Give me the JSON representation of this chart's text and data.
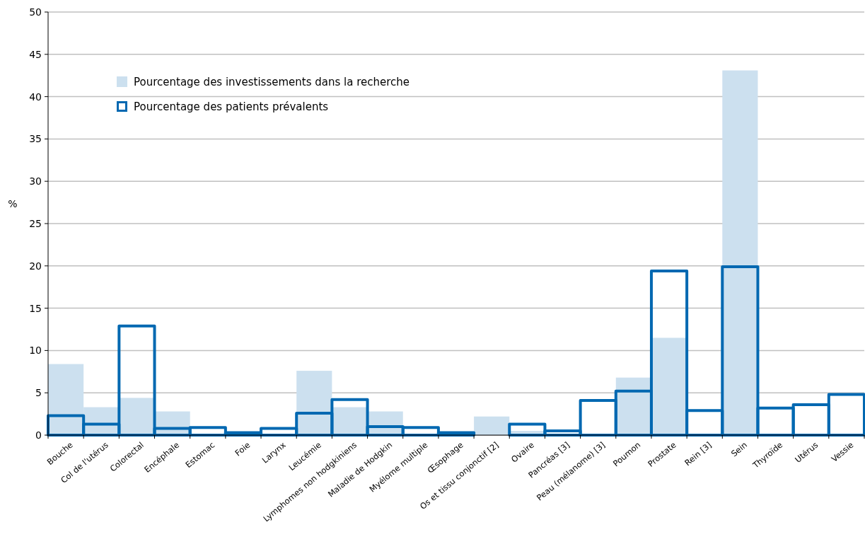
{
  "chart_data": {
    "type": "bar",
    "ylabel": "%",
    "categories": [
      "Bouche",
      "Col de l'utérus",
      "Colorectal",
      "Encéphale",
      "Estomac",
      "Foie",
      "Larynx",
      "Leucémie",
      "Lymphomes non hodgkiniens",
      "Maladie de Hodgkin",
      "Myélome multiple",
      "Œsophage",
      "Os et tissu conjonctif [2]",
      "Ovaire",
      "Pancréas [3]",
      "Peau (mélanome) [3]",
      "Poumon",
      "Prostate",
      "Rein [3]",
      "Sein",
      "Thyroïde",
      "Utérus",
      "Vessie"
    ],
    "series": [
      {
        "name": "Pourcentage des investissements dans la recherche",
        "color": "#cce0ef",
        "values": [
          8.4,
          3.3,
          4.4,
          2.8,
          0,
          null,
          0,
          7.6,
          3.3,
          2.8,
          0,
          0,
          2.2,
          0.5,
          0,
          0,
          6.8,
          11.5,
          0,
          43.1,
          0,
          0,
          0
        ]
      },
      {
        "name": "Pourcentage des patients prévalents",
        "color": "#0068b1",
        "values": [
          2.3,
          1.3,
          12.9,
          0.8,
          0.9,
          0.3,
          0.8,
          2.6,
          4.2,
          1.0,
          0.9,
          0.3,
          0,
          1.3,
          0.5,
          4.1,
          5.2,
          19.4,
          2.9,
          19.9,
          3.2,
          3.6,
          4.8
        ]
      }
    ],
    "ylim": [
      0,
      50
    ],
    "yticks": [
      0,
      5,
      10,
      15,
      20,
      25,
      30,
      35,
      40,
      45,
      50
    ],
    "grid": "y",
    "legend": "top left"
  }
}
